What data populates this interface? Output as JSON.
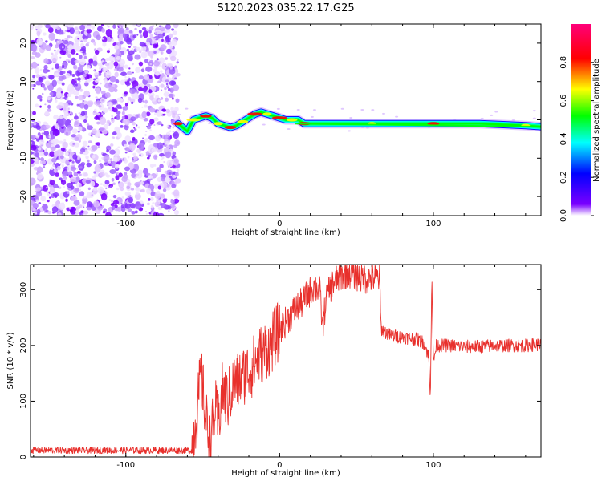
{
  "title": "S120.2023.035.22.17.G25",
  "chart_data": [
    {
      "type": "heatmap",
      "xlabel": "Height of straight line (km)",
      "ylabel": "Frequency (Hz)",
      "xlim": [
        -162,
        170
      ],
      "ylim": [
        -25,
        25
      ],
      "x_ticks": [
        -100,
        0,
        100
      ],
      "y_ticks": [
        -20,
        -10,
        0,
        10,
        20
      ],
      "colorbar": {
        "label": "Normalized spectral amplitude",
        "range": [
          0,
          1
        ],
        "ticks": [
          "0.0",
          "0.2",
          "0.4",
          "0.6",
          "0.8"
        ],
        "colormap": [
          "#ffffff",
          "#7a00ff",
          "#0000ff",
          "#00ffff",
          "#00ff00",
          "#ffff00",
          "#ff0000",
          "#ff007a"
        ]
      },
      "noise_region_x": [
        -162,
        -66
      ],
      "signal_track": {
        "x": [
          -66,
          -60,
          -56,
          -52,
          -48,
          -44,
          -40,
          -36,
          -32,
          -28,
          -24,
          -20,
          -16,
          -12,
          -8,
          -4,
          0,
          4,
          8,
          12,
          16,
          30,
          60,
          90,
          100,
          130,
          160,
          170
        ],
        "y": [
          -1,
          -3,
          0,
          0.5,
          1,
          0.5,
          -1,
          -1.5,
          -2,
          -1.5,
          -0.5,
          0.5,
          1.5,
          2,
          1.5,
          1,
          0.5,
          0,
          0,
          0,
          -1,
          -1,
          -1,
          -1,
          -1,
          -1,
          -1.5,
          -1.8
        ]
      }
    },
    {
      "type": "line",
      "xlabel": "Height of straight line (km)",
      "ylabel": "SNR (10 * v/v)",
      "xlim": [
        -162,
        170
      ],
      "ylim": [
        0,
        345
      ],
      "x_ticks": [
        -100,
        0,
        100
      ],
      "y_ticks": [
        0,
        100,
        200,
        300
      ],
      "series": [
        {
          "color": "#e8302c",
          "x": [
            -162,
            -120,
            -80,
            -57,
            -53,
            -51,
            -48,
            -45,
            -42,
            -40,
            -37,
            -34,
            -30,
            -26,
            -22,
            -18,
            -14,
            -10,
            -6,
            -2,
            2,
            6,
            10,
            14,
            18,
            22,
            26,
            28,
            30,
            34,
            38,
            42,
            46,
            50,
            54,
            58,
            62,
            65,
            66,
            68,
            72,
            80,
            88,
            94,
            97,
            98,
            99,
            100,
            102,
            110,
            120,
            130,
            140,
            150,
            160,
            170
          ],
          "y": [
            12,
            12,
            12,
            12,
            100,
            150,
            70,
            20,
            90,
            60,
            120,
            100,
            130,
            140,
            150,
            160,
            180,
            190,
            200,
            220,
            235,
            250,
            265,
            275,
            290,
            305,
            300,
            230,
            280,
            310,
            320,
            328,
            330,
            325,
            320,
            320,
            322,
            320,
            230,
            225,
            218,
            215,
            212,
            205,
            180,
            100,
            330,
            170,
            200,
            200,
            198,
            198,
            200,
            200,
            200,
            202
          ]
        }
      ]
    }
  ]
}
